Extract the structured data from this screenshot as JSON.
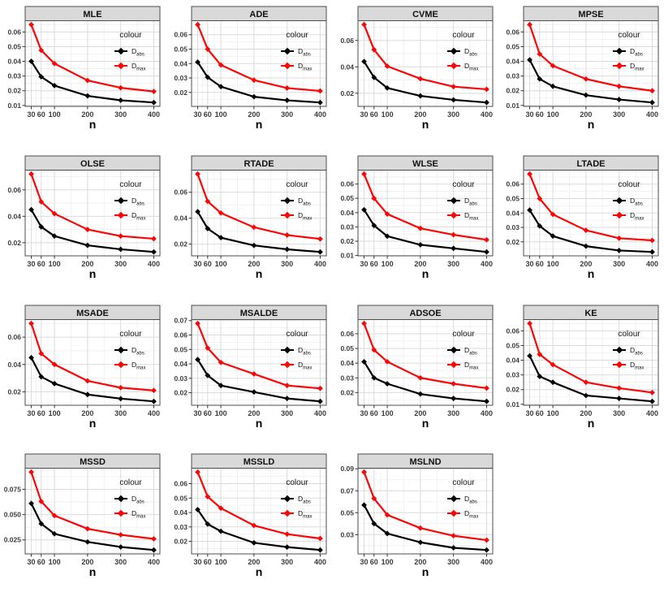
{
  "axis": {
    "x_label": "n",
    "x_ticks": [
      30,
      60,
      100,
      200,
      300,
      400
    ]
  },
  "legend": {
    "title": "colour",
    "entries": [
      {
        "label_base": "D",
        "label_sub": "abs",
        "color": "black"
      },
      {
        "label_base": "D",
        "label_sub": "max",
        "color": "red"
      }
    ]
  },
  "colors": {
    "black": "#000000",
    "red": "#FB0606",
    "strip_fill": "#D9D9D9",
    "strip_border": "#4D4D4D",
    "panel_border": "#4D4D4D",
    "grid_major": "#DBDBDB",
    "grid_minor": "#EFEFEF",
    "axis_text": "#3C3C3C",
    "title_text": "#111111"
  },
  "chart_data": [
    {
      "type": "line",
      "title": "MLE",
      "xlabel": "n",
      "x": [
        30,
        60,
        100,
        200,
        300,
        400
      ],
      "y_ticks": [
        0.01,
        0.02,
        0.03,
        0.04,
        0.05,
        0.06
      ],
      "y_tick_labels": [
        "0.01",
        "0.02",
        "0.03",
        "0.04",
        "0.05",
        "0.06"
      ],
      "series": [
        {
          "name": "D_abs",
          "color": "black",
          "values": [
            0.04,
            0.0295,
            0.0235,
            0.0165,
            0.0135,
            0.012
          ]
        },
        {
          "name": "D_max",
          "color": "red",
          "values": [
            0.065,
            0.0475,
            0.0385,
            0.027,
            0.022,
            0.0195
          ]
        }
      ]
    },
    {
      "type": "line",
      "title": "ADE",
      "xlabel": "n",
      "x": [
        30,
        60,
        100,
        200,
        300,
        400
      ],
      "y_ticks": [
        0.02,
        0.03,
        0.04,
        0.05,
        0.06
      ],
      "y_tick_labels": [
        "0.02",
        "0.03",
        "0.04",
        "0.05",
        "0.06"
      ],
      "series": [
        {
          "name": "D_abs",
          "color": "black",
          "values": [
            0.041,
            0.0305,
            0.024,
            0.017,
            0.0145,
            0.013
          ]
        },
        {
          "name": "D_max",
          "color": "red",
          "values": [
            0.067,
            0.05,
            0.039,
            0.0285,
            0.023,
            0.021
          ]
        }
      ]
    },
    {
      "type": "line",
      "title": "CVME",
      "xlabel": "n",
      "x": [
        30,
        60,
        100,
        200,
        300,
        400
      ],
      "y_ticks": [
        0.02,
        0.04,
        0.06
      ],
      "y_tick_labels": [
        "0.02",
        "0.04",
        "0.06"
      ],
      "series": [
        {
          "name": "D_abs",
          "color": "black",
          "values": [
            0.044,
            0.032,
            0.024,
            0.018,
            0.015,
            0.013
          ]
        },
        {
          "name": "D_max",
          "color": "red",
          "values": [
            0.072,
            0.053,
            0.0405,
            0.031,
            0.025,
            0.023
          ]
        }
      ]
    },
    {
      "type": "line",
      "title": "MPSE",
      "xlabel": "n",
      "x": [
        30,
        60,
        100,
        200,
        300,
        400
      ],
      "y_ticks": [
        0.01,
        0.02,
        0.03,
        0.04,
        0.05,
        0.06
      ],
      "y_tick_labels": [
        "0.01",
        "0.02",
        "0.03",
        "0.04",
        "0.05",
        "0.06"
      ],
      "series": [
        {
          "name": "D_abs",
          "color": "black",
          "values": [
            0.041,
            0.028,
            0.023,
            0.017,
            0.014,
            0.012
          ]
        },
        {
          "name": "D_max",
          "color": "red",
          "values": [
            0.065,
            0.045,
            0.037,
            0.028,
            0.023,
            0.02
          ]
        }
      ]
    },
    {
      "type": "line",
      "title": "OLSE",
      "xlabel": "n",
      "x": [
        30,
        60,
        100,
        200,
        300,
        400
      ],
      "y_ticks": [
        0.02,
        0.04,
        0.06
      ],
      "y_tick_labels": [
        "0.02",
        "0.04",
        "0.06"
      ],
      "series": [
        {
          "name": "D_abs",
          "color": "black",
          "values": [
            0.045,
            0.032,
            0.025,
            0.018,
            0.015,
            0.013
          ]
        },
        {
          "name": "D_max",
          "color": "red",
          "values": [
            0.072,
            0.051,
            0.042,
            0.03,
            0.025,
            0.023
          ]
        }
      ]
    },
    {
      "type": "line",
      "title": "RTADE",
      "xlabel": "n",
      "x": [
        30,
        60,
        100,
        200,
        300,
        400
      ],
      "y_ticks": [
        0.02,
        0.04,
        0.06
      ],
      "y_tick_labels": [
        "0.02",
        "0.04",
        "0.06"
      ],
      "series": [
        {
          "name": "D_abs",
          "color": "black",
          "values": [
            0.045,
            0.032,
            0.025,
            0.019,
            0.016,
            0.014
          ]
        },
        {
          "name": "D_max",
          "color": "red",
          "values": [
            0.074,
            0.053,
            0.044,
            0.033,
            0.027,
            0.024
          ]
        }
      ]
    },
    {
      "type": "line",
      "title": "WLSE",
      "xlabel": "n",
      "x": [
        30,
        60,
        100,
        200,
        300,
        400
      ],
      "y_ticks": [
        0.01,
        0.02,
        0.03,
        0.04,
        0.05,
        0.06
      ],
      "y_tick_labels": [
        "0.01",
        "0.02",
        "0.03",
        "0.04",
        "0.05",
        "0.06"
      ],
      "series": [
        {
          "name": "D_abs",
          "color": "black",
          "values": [
            0.042,
            0.031,
            0.0235,
            0.0175,
            0.015,
            0.0125
          ]
        },
        {
          "name": "D_max",
          "color": "red",
          "values": [
            0.067,
            0.05,
            0.039,
            0.029,
            0.0245,
            0.021
          ]
        }
      ]
    },
    {
      "type": "line",
      "title": "LTADE",
      "xlabel": "n",
      "x": [
        30,
        60,
        100,
        200,
        300,
        400
      ],
      "y_ticks": [
        0.02,
        0.03,
        0.04,
        0.05,
        0.06
      ],
      "y_tick_labels": [
        "0.02",
        "0.03",
        "0.04",
        "0.05",
        "0.06"
      ],
      "series": [
        {
          "name": "D_abs",
          "color": "black",
          "values": [
            0.042,
            0.031,
            0.024,
            0.017,
            0.014,
            0.013
          ]
        },
        {
          "name": "D_max",
          "color": "red",
          "values": [
            0.067,
            0.05,
            0.039,
            0.028,
            0.0225,
            0.021
          ]
        }
      ]
    },
    {
      "type": "line",
      "title": "MSADE",
      "xlabel": "n",
      "x": [
        30,
        60,
        100,
        200,
        300,
        400
      ],
      "y_ticks": [
        0.02,
        0.04,
        0.06
      ],
      "y_tick_labels": [
        "0.02",
        "0.04",
        "0.06"
      ],
      "series": [
        {
          "name": "D_abs",
          "color": "black",
          "values": [
            0.045,
            0.031,
            0.026,
            0.018,
            0.015,
            0.013
          ]
        },
        {
          "name": "D_max",
          "color": "red",
          "values": [
            0.07,
            0.048,
            0.04,
            0.028,
            0.023,
            0.021
          ]
        }
      ]
    },
    {
      "type": "line",
      "title": "MSALDE",
      "xlabel": "n",
      "x": [
        30,
        60,
        100,
        200,
        300,
        400
      ],
      "y_ticks": [
        0.02,
        0.03,
        0.04,
        0.05,
        0.06,
        0.07
      ],
      "y_tick_labels": [
        "0.02",
        "0.03",
        "0.04",
        "0.05",
        "0.06",
        "0.07"
      ],
      "series": [
        {
          "name": "D_abs",
          "color": "black",
          "values": [
            0.043,
            0.032,
            0.025,
            0.0205,
            0.016,
            0.014
          ]
        },
        {
          "name": "D_max",
          "color": "red",
          "values": [
            0.068,
            0.051,
            0.041,
            0.033,
            0.025,
            0.023
          ]
        }
      ]
    },
    {
      "type": "line",
      "title": "ADSOE",
      "xlabel": "n",
      "x": [
        30,
        60,
        100,
        200,
        300,
        400
      ],
      "y_ticks": [
        0.02,
        0.03,
        0.04,
        0.05,
        0.06
      ],
      "y_tick_labels": [
        "0.02",
        "0.03",
        "0.04",
        "0.05",
        "0.06"
      ],
      "series": [
        {
          "name": "D_abs",
          "color": "black",
          "values": [
            0.041,
            0.03,
            0.026,
            0.019,
            0.016,
            0.014
          ]
        },
        {
          "name": "D_max",
          "color": "red",
          "values": [
            0.067,
            0.049,
            0.041,
            0.03,
            0.026,
            0.023
          ]
        }
      ]
    },
    {
      "type": "line",
      "title": "KE",
      "xlabel": "n",
      "x": [
        30,
        60,
        100,
        200,
        300,
        400
      ],
      "y_ticks": [
        0.01,
        0.02,
        0.03,
        0.04,
        0.05,
        0.06
      ],
      "y_tick_labels": [
        "0.01",
        "0.02",
        "0.03",
        "0.04",
        "0.05",
        "0.06"
      ],
      "series": [
        {
          "name": "D_abs",
          "color": "black",
          "values": [
            0.043,
            0.029,
            0.025,
            0.016,
            0.014,
            0.012
          ]
        },
        {
          "name": "D_max",
          "color": "red",
          "values": [
            0.065,
            0.044,
            0.037,
            0.025,
            0.021,
            0.018
          ]
        }
      ]
    },
    {
      "type": "line",
      "title": "MSSD",
      "xlabel": "n",
      "x": [
        30,
        60,
        100,
        200,
        300,
        400
      ],
      "y_ticks": [
        0.025,
        0.05,
        0.075
      ],
      "y_tick_labels": [
        "0.025",
        "0.050",
        "0.075"
      ],
      "series": [
        {
          "name": "D_abs",
          "color": "black",
          "values": [
            0.061,
            0.041,
            0.031,
            0.023,
            0.018,
            0.015
          ]
        },
        {
          "name": "D_max",
          "color": "red",
          "values": [
            0.092,
            0.063,
            0.049,
            0.036,
            0.03,
            0.026
          ]
        }
      ]
    },
    {
      "type": "line",
      "title": "MSSLD",
      "xlabel": "n",
      "x": [
        30,
        60,
        100,
        200,
        300,
        400
      ],
      "y_ticks": [
        0.02,
        0.03,
        0.04,
        0.05,
        0.06
      ],
      "y_tick_labels": [
        "0.02",
        "0.03",
        "0.04",
        "0.05",
        "0.06"
      ],
      "series": [
        {
          "name": "D_abs",
          "color": "black",
          "values": [
            0.042,
            0.032,
            0.027,
            0.019,
            0.016,
            0.014
          ]
        },
        {
          "name": "D_max",
          "color": "red",
          "values": [
            0.068,
            0.051,
            0.043,
            0.031,
            0.025,
            0.022
          ]
        }
      ]
    },
    {
      "type": "line",
      "title": "MSLND",
      "xlabel": "n",
      "x": [
        30,
        60,
        100,
        200,
        300,
        400
      ],
      "y_ticks": [
        0.03,
        0.05,
        0.07,
        0.09
      ],
      "y_tick_labels": [
        "0.03",
        "0.05",
        "0.07",
        "0.09"
      ],
      "series": [
        {
          "name": "D_abs",
          "color": "black",
          "values": [
            0.057,
            0.04,
            0.031,
            0.023,
            0.018,
            0.016
          ]
        },
        {
          "name": "D_max",
          "color": "red",
          "values": [
            0.087,
            0.063,
            0.048,
            0.036,
            0.029,
            0.025
          ]
        }
      ]
    }
  ]
}
